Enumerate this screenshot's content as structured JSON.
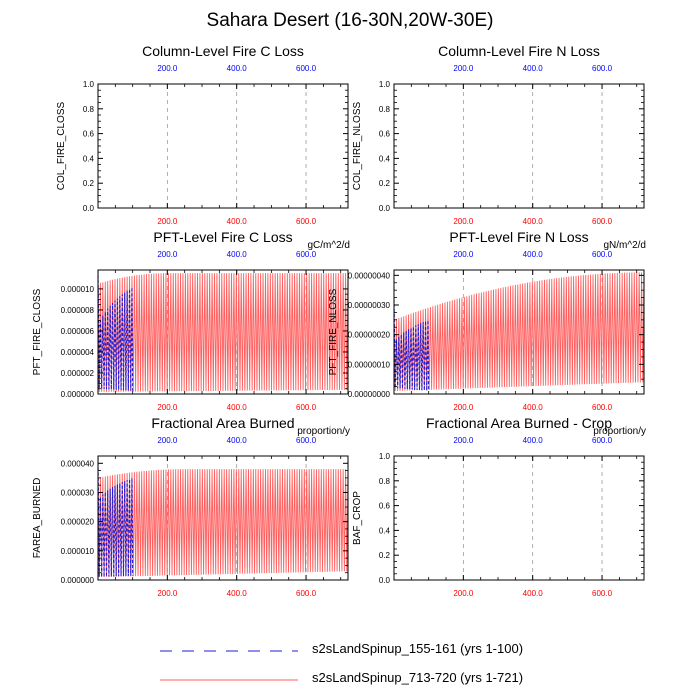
{
  "title": "Sahara Desert (16-30N,20W-30E)",
  "colors": {
    "series1": "#1f1fd6",
    "series2": "#ff5f5f",
    "top_ticks": "#0000ff",
    "bottom_ticks": "#ff0000",
    "grid": "#9a9a9a"
  },
  "legend": {
    "entries": [
      {
        "label": "s2sLandSpinup_155-161 (yrs 1-100)",
        "color": "#1f1fd6",
        "style": "dashed"
      },
      {
        "label": "s2sLandSpinup_713-720 (yrs 1-721)",
        "color": "#ff5f5f",
        "style": "solid"
      }
    ],
    "placement": "bottom"
  },
  "chart_data": [
    {
      "type": "line",
      "panel": "top-left",
      "title": "Column-Level Fire C Loss",
      "ylabel": "COL_FIRE_CLOSS",
      "units": "",
      "ylim": [
        0,
        1
      ],
      "yticks": [
        "0.0",
        "0.2",
        "0.4",
        "0.6",
        "0.8",
        "1.0"
      ],
      "xlim": [
        0,
        721
      ],
      "xticks": [
        200,
        400,
        600
      ],
      "xticklabels": [
        "200.0",
        "400.0",
        "600.0"
      ],
      "grid_x": true,
      "series": []
    },
    {
      "type": "line",
      "panel": "top-right",
      "title": "Column-Level Fire N Loss",
      "ylabel": "COL_FIRE_NLOSS",
      "units": "",
      "ylim": [
        0,
        1
      ],
      "yticks": [
        "0.0",
        "0.2",
        "0.4",
        "0.6",
        "0.8",
        "1.0"
      ],
      "xlim": [
        0,
        721
      ],
      "xticks": [
        200,
        400,
        600
      ],
      "xticklabels": [
        "200.0",
        "400.0",
        "600.0"
      ],
      "grid_x": true,
      "series": []
    },
    {
      "type": "line",
      "panel": "middle-left",
      "title": "PFT-Level Fire C Loss",
      "ylabel": "PFT_FIRE_CLOSS",
      "units": "gC/m^2/d",
      "ylim": [
        0,
        1.18e-05
      ],
      "yticks": [
        "0.000000",
        "0.000002",
        "0.000004",
        "0.000006",
        "0.000008",
        "0.000010"
      ],
      "ytick_values": [
        0,
        2e-06,
        4e-06,
        6e-06,
        8e-06,
        1e-05
      ],
      "xlim": [
        0,
        721
      ],
      "xticks": [
        200,
        400,
        600
      ],
      "xticklabels": [
        "200.0",
        "400.0",
        "600.0"
      ],
      "grid_x": true,
      "series": [
        {
          "color": "#1f1fd6",
          "dashed": true,
          "x_end": 100,
          "period": 7,
          "spike": 1.18e-05,
          "min_start": 5e-07,
          "max_start": 5.8e-06,
          "max_end": 1.02e-05,
          "min_end": 3e-07
        },
        {
          "color": "#ff5f5f",
          "dashed": false,
          "x_end": 721,
          "period": 7,
          "max_start": 1.05e-05,
          "max_plateau": 1.15e-05,
          "plateau_x": 200,
          "min_start": 2e-07,
          "min_end": 4e-07
        }
      ]
    },
    {
      "type": "line",
      "panel": "middle-right",
      "title": "PFT-Level Fire N Loss",
      "ylabel": "PFT_FIRE_NLOSS",
      "units": "gN/m^2/d",
      "ylim": [
        0,
        4.18e-07
      ],
      "yticks": [
        "0.00000000",
        "0.00000010",
        "0.00000020",
        "0.00000030",
        "0.00000040"
      ],
      "ytick_values": [
        0,
        1e-07,
        2e-07,
        3e-07,
        4e-07
      ],
      "xlim": [
        0,
        721
      ],
      "xticks": [
        200,
        400,
        600
      ],
      "xticklabels": [
        "200.0",
        "400.0",
        "600.0"
      ],
      "grid_x": true,
      "series": [
        {
          "color": "#1f1fd6",
          "dashed": true,
          "x_end": 100,
          "period": 7,
          "spike": 3.2e-07,
          "min_start": 2e-08,
          "max_start": 1.6e-07,
          "max_end": 2.5e-07,
          "min_end": 1e-08
        },
        {
          "color": "#ff5f5f",
          "dashed": false,
          "x_end": 721,
          "period": 7,
          "max_start": 2.5e-07,
          "max_plateau": 4.1e-07,
          "plateau_x": 721,
          "min_start": 1e-08,
          "min_end": 4e-08
        }
      ]
    },
    {
      "type": "line",
      "panel": "bottom-left",
      "title": "Fractional Area Burned",
      "ylabel": "FAREA_BURNED",
      "units": "proportion/y",
      "ylim": [
        0,
        4.25e-05
      ],
      "yticks": [
        "0.000000",
        "0.000010",
        "0.000020",
        "0.000030",
        "0.000040"
      ],
      "ytick_values": [
        0,
        1e-05,
        2e-05,
        3e-05,
        4e-05
      ],
      "xlim": [
        0,
        721
      ],
      "xticks": [
        200,
        400,
        600
      ],
      "xticklabels": [
        "200.0",
        "400.0",
        "600.0"
      ],
      "grid_x": true,
      "series": [
        {
          "color": "#1f1fd6",
          "dashed": true,
          "x_end": 100,
          "period": 7,
          "spike": 4.2e-05,
          "min_start": 1e-06,
          "max_start": 2.6e-05,
          "max_end": 3.5e-05,
          "min_end": 1.5e-06
        },
        {
          "color": "#ff5f5f",
          "dashed": false,
          "x_end": 721,
          "period": 7,
          "max_start": 3.5e-05,
          "max_plateau": 3.8e-05,
          "plateau_x": 250,
          "min_start": 1e-06,
          "min_end": 3e-06
        }
      ]
    },
    {
      "type": "line",
      "panel": "bottom-right",
      "title": "Fractional Area Burned - Crop",
      "ylabel": "BAF_CROP",
      "units": "proportion/y",
      "ylim": [
        0,
        1
      ],
      "yticks": [
        "0.0",
        "0.2",
        "0.4",
        "0.6",
        "0.8",
        "1.0"
      ],
      "xlim": [
        0,
        721
      ],
      "xticks": [
        200,
        400,
        600
      ],
      "xticklabels": [
        "200.0",
        "400.0",
        "600.0"
      ],
      "grid_x": true,
      "series": []
    }
  ]
}
